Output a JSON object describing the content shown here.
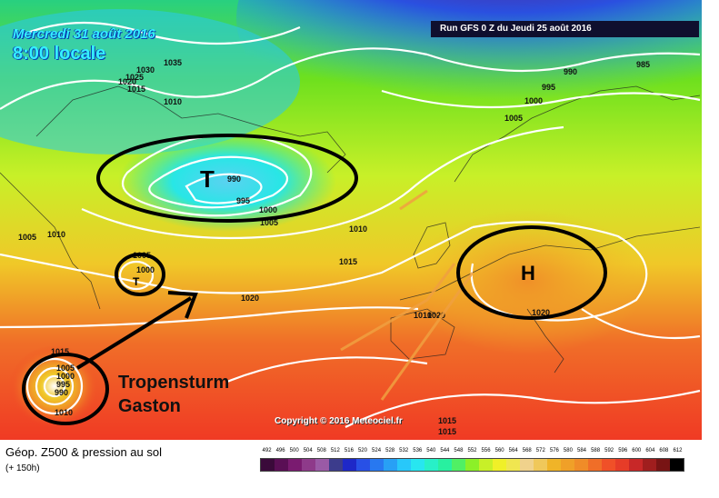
{
  "map": {
    "date_label": "Mercredi 31 août 2016",
    "time_label": "8:00 locale",
    "run_label": "Run GFS 0 Z du Jeudi 25 août 2016",
    "copyright": "Copyright © 2016 Meteociel.fr",
    "storm_label_line1": "Tropensturm",
    "storm_label_line2": "Gaston",
    "title": "Géop. Z500 & pression au sol",
    "forecast_hour": "(+ 150h)",
    "pressure_labels": [
      "1035",
      "1030",
      "1025",
      "1020",
      "1015",
      "1010",
      "990",
      "995",
      "1000",
      "1005",
      "985",
      "990",
      "995",
      "1000",
      "1005",
      "1005",
      "1010",
      "1005",
      "1000",
      "1010",
      "1015",
      "1020",
      "1010",
      "1020",
      "1015",
      "1005",
      "1000",
      "995",
      "990",
      "1010",
      "1015",
      "1015",
      "1020"
    ],
    "systems": [
      {
        "symbol": "T",
        "kind": "low"
      },
      {
        "symbol": "H",
        "kind": "high"
      },
      {
        "symbol": "T",
        "kind": "low"
      }
    ]
  },
  "legend": {
    "ticks": [
      "492",
      "496",
      "500",
      "504",
      "508",
      "512",
      "516",
      "520",
      "524",
      "528",
      "532",
      "536",
      "540",
      "544",
      "548",
      "552",
      "556",
      "560",
      "564",
      "568",
      "572",
      "576",
      "580",
      "584",
      "588",
      "592",
      "596",
      "600",
      "604",
      "608",
      "612"
    ],
    "colors": [
      "#3a0a3a",
      "#5a0f55",
      "#7a1b70",
      "#8e3a8a",
      "#9a5aa6",
      "#3c3c8c",
      "#1e28c8",
      "#2850e6",
      "#2878f0",
      "#28a0f5",
      "#28c8fa",
      "#28e6f0",
      "#28f0c8",
      "#28f0a0",
      "#50f064",
      "#8cf028",
      "#c8f028",
      "#f0f028",
      "#f0e650",
      "#f0d28c",
      "#f0c85a",
      "#f0b428",
      "#f0a028",
      "#f08c28",
      "#f06e28",
      "#f05028",
      "#e63c28",
      "#c82828",
      "#a01e1e",
      "#781414",
      "#000000"
    ]
  }
}
